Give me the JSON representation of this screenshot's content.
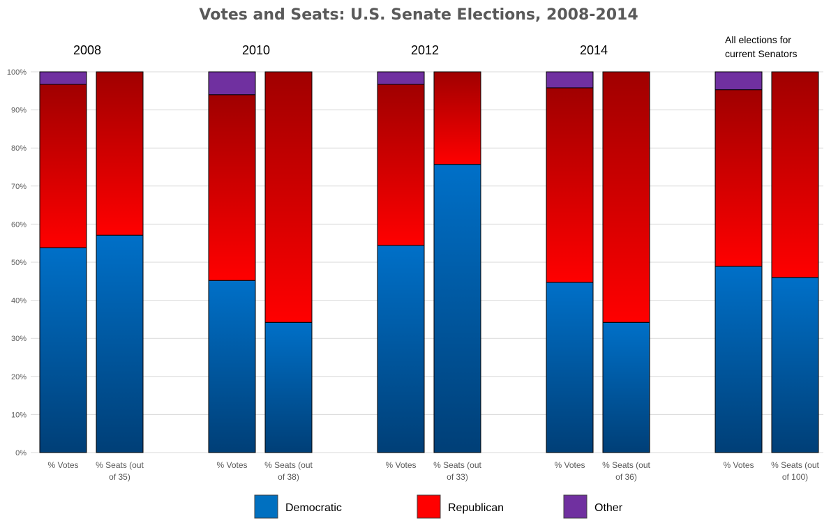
{
  "chart_data": {
    "type": "bar",
    "stacked": true,
    "title": "Votes and Seats: U.S. Senate Elections, 2008-2014",
    "ylim": [
      0,
      100
    ],
    "y_ticks": [
      "0%",
      "10%",
      "20%",
      "30%",
      "40%",
      "50%",
      "60%",
      "70%",
      "80%",
      "90%",
      "100%"
    ],
    "y_tick_values": [
      0,
      10,
      20,
      30,
      40,
      50,
      60,
      70,
      80,
      90,
      100
    ],
    "grid": true,
    "legend_position": "bottom",
    "series": [
      {
        "name": "Democratic",
        "color": "#0070c0"
      },
      {
        "name": "Republican",
        "color": "#ff0000"
      },
      {
        "name": "Other",
        "color": "#7030a0"
      }
    ],
    "groups": [
      {
        "label_lines": [
          "2008"
        ],
        "bars": [
          {
            "label_lines": [
              "% Votes"
            ],
            "values": [
              53.8,
              42.9,
              3.3
            ]
          },
          {
            "label_lines": [
              "% Seats (out",
              "of 35)"
            ],
            "values": [
              57.1,
              42.9,
              0
            ]
          }
        ]
      },
      {
        "label_lines": [
          "2010"
        ],
        "bars": [
          {
            "label_lines": [
              "% Votes"
            ],
            "values": [
              45.2,
              48.8,
              6.0
            ]
          },
          {
            "label_lines": [
              "% Seats (out",
              "of 38)"
            ],
            "values": [
              34.2,
              65.8,
              0
            ]
          }
        ]
      },
      {
        "label_lines": [
          "2012"
        ],
        "bars": [
          {
            "label_lines": [
              "% Votes"
            ],
            "values": [
              54.4,
              42.3,
              3.3
            ]
          },
          {
            "label_lines": [
              "% Seats (out",
              "of 33)"
            ],
            "values": [
              75.7,
              24.3,
              0
            ]
          }
        ]
      },
      {
        "label_lines": [
          "2014"
        ],
        "bars": [
          {
            "label_lines": [
              "% Votes"
            ],
            "values": [
              44.7,
              51.1,
              4.2
            ]
          },
          {
            "label_lines": [
              "% Seats (out",
              "of 36)"
            ],
            "values": [
              34.2,
              65.8,
              0
            ]
          }
        ]
      },
      {
        "label_lines": [
          "All elections for",
          "current Senators"
        ],
        "bars": [
          {
            "label_lines": [
              "% Votes"
            ],
            "values": [
              48.9,
              46.4,
              4.7
            ]
          },
          {
            "label_lines": [
              "% Seats (out",
              "of 100)"
            ],
            "values": [
              46.0,
              54.0,
              0
            ]
          }
        ]
      }
    ]
  }
}
